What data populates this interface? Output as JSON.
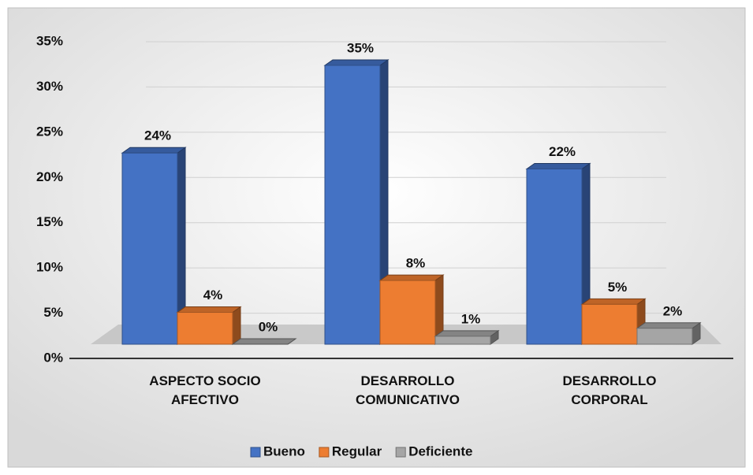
{
  "chart_data": {
    "type": "bar3d",
    "categories": [
      "ASPECTO SOCIO AFECTIVO",
      "DESARROLLO COMUNICATIVO",
      "DESARROLLO CORPORAL"
    ],
    "series": [
      {
        "name": "Bueno",
        "color": "#4472c4",
        "values": [
          24,
          35,
          22
        ],
        "value_labels": [
          "24%",
          "35%",
          "22%"
        ]
      },
      {
        "name": "Regular",
        "color": "#ed7d31",
        "values": [
          4,
          8,
          5
        ],
        "value_labels": [
          "4%",
          "8%",
          "5%"
        ]
      },
      {
        "name": "Deficiente",
        "color": "#a5a5a5",
        "values": [
          0,
          1,
          2
        ],
        "value_labels": [
          "0%",
          "1%",
          "2%"
        ]
      }
    ],
    "ylim": [
      0,
      35
    ],
    "yticks": [
      {
        "value": 0,
        "label": "0%"
      },
      {
        "value": 5,
        "label": "5%"
      },
      {
        "value": 10,
        "label": "10%"
      },
      {
        "value": 15,
        "label": "15%"
      },
      {
        "value": 20,
        "label": "20%"
      },
      {
        "value": 25,
        "label": "25%"
      },
      {
        "value": 30,
        "label": "30%"
      },
      {
        "value": 35,
        "label": "35%"
      }
    ],
    "grid": true,
    "legend": "bottom"
  }
}
